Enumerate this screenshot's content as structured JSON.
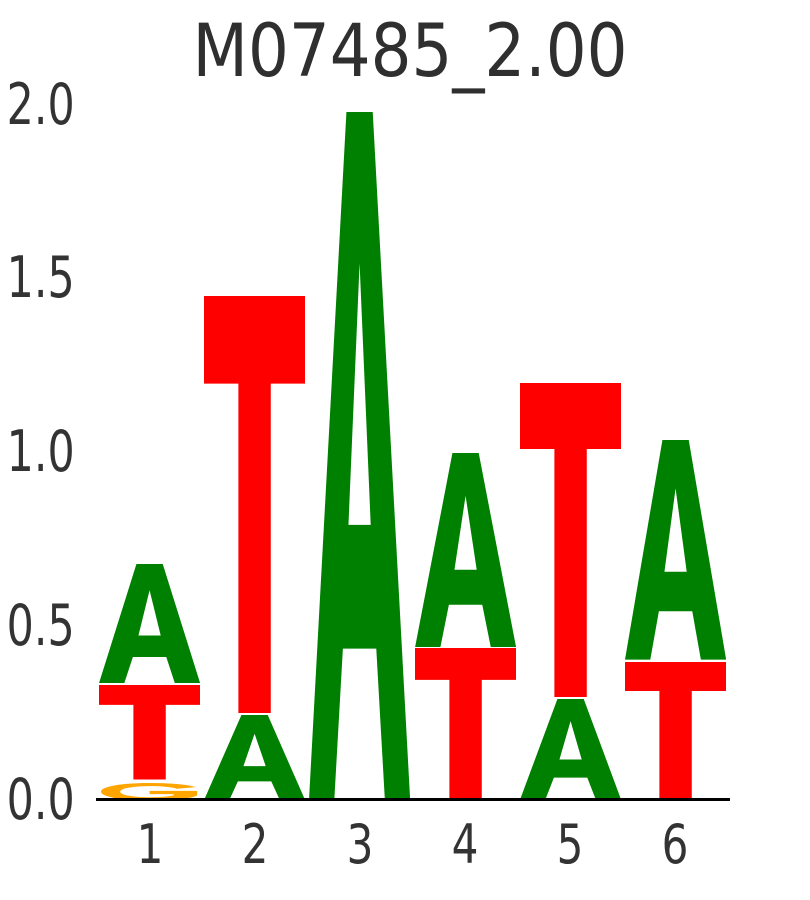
{
  "title": "M07485_2.00",
  "colors": {
    "A": "#008000",
    "T": "#ff0000",
    "G": "#ffa500",
    "text": "#333333",
    "spine": "#000000",
    "background": "#ffffff"
  },
  "y_axis": {
    "ticks": [
      "2.0",
      "1.5",
      "1.0",
      "0.5",
      "0.0"
    ]
  },
  "x_axis": {
    "ticks": [
      "1",
      "2",
      "3",
      "4",
      "5",
      "6"
    ]
  },
  "chart_data": {
    "type": "sequence_logo",
    "title": "M07485_2.00",
    "unit": "information_bits",
    "ylim": [
      0,
      2
    ],
    "yticks": [
      2.0,
      1.5,
      1.0,
      0.5,
      0.0
    ],
    "positions": [
      1,
      2,
      3,
      4,
      5,
      6
    ],
    "consensus": "ATAATA",
    "stacks": [
      [
        {
          "letter": "G",
          "from": 0,
          "to": 0.05
        },
        {
          "letter": "T",
          "from": 0.058,
          "to": 0.33
        },
        {
          "letter": "A",
          "from": 0.337,
          "to": 0.68
        }
      ],
      [
        {
          "letter": "A",
          "from": 0,
          "to": 0.245
        },
        {
          "letter": "T",
          "from": 0.25,
          "to": 1.45
        }
      ],
      [
        {
          "letter": "A",
          "from": 0,
          "to": 1.98
        }
      ],
      [
        {
          "letter": "T",
          "from": 0,
          "to": 0.437
        },
        {
          "letter": "A",
          "from": 0.44,
          "to": 1.0
        }
      ],
      [
        {
          "letter": "A",
          "from": 0,
          "to": 0.29
        },
        {
          "letter": "T",
          "from": 0.295,
          "to": 1.2
        }
      ],
      [
        {
          "letter": "T",
          "from": 0,
          "to": 0.397
        },
        {
          "letter": "A",
          "from": 0.403,
          "to": 1.035
        }
      ]
    ]
  }
}
